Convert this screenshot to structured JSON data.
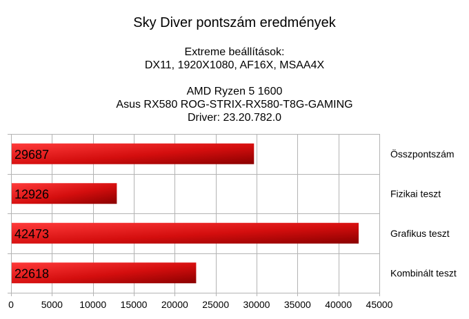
{
  "chart_data": {
    "type": "bar",
    "orientation": "horizontal",
    "title": "Sky Diver pontszám eredmények",
    "subtitle_lines": [
      "Extreme beállítások:",
      "DX11, 1920X1080, AF16X, MSAA4X",
      "AMD Ryzen 5 1600",
      "Asus RX580 ROG-STRIX-RX580-T8G-GAMING",
      "Driver: 23.20.782.0"
    ],
    "categories": [
      "Összpontszám",
      "Fizikai teszt",
      "Grafikus teszt",
      "Kombinált teszt"
    ],
    "values": [
      29687,
      12926,
      42473,
      22618
    ],
    "value_labels": [
      "29687",
      "12926",
      "42473",
      "22618"
    ],
    "x_ticks": [
      "0",
      "5000",
      "10000",
      "15000",
      "20000",
      "25000",
      "30000",
      "35000",
      "40000",
      "45000"
    ],
    "xlim": [
      0,
      45000
    ],
    "xlabel": "",
    "ylabel": "",
    "grid": true,
    "bar_color": "#cc0000"
  }
}
